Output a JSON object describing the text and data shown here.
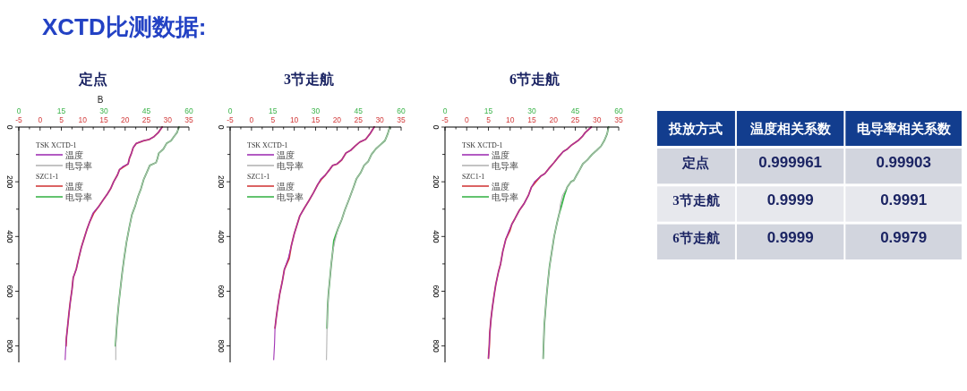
{
  "chart_data": [
    {
      "type": "line",
      "title": "XCTD比测数据:",
      "subtitle": "定点",
      "annotations": [
        "TSK XCTD-1",
        "SZC1-1",
        "B"
      ],
      "legend": "top left",
      "xlim": [
        -5,
        35
      ],
      "xticks": [
        -5,
        {
          "value": -2.5,
          "label": null
        },
        0,
        {
          "value": 2.5,
          "label": null
        },
        5,
        {
          "value": 7.5,
          "label": null
        },
        10,
        {
          "value": 12.5,
          "label": null
        },
        15,
        {
          "value": 17.5,
          "label": null
        },
        20,
        {
          "value": 22.5,
          "label": null
        },
        25,
        {
          "value": 27.5,
          "label": null
        },
        30,
        {
          "value": 32.5,
          "label": null
        },
        35
      ],
      "x2lim": [
        0,
        60
      ],
      "x2ticks": [
        0,
        15,
        30,
        45,
        60
      ],
      "ylim": [
        860,
        0
      ],
      "yticks": [
        0,
        {
          "value": 100,
          "label": null
        },
        200,
        {
          "value": 300,
          "label": null
        },
        400,
        {
          "value": 500,
          "label": null
        },
        600,
        {
          "value": 700,
          "label": null
        },
        800
      ],
      "series": [
        {
          "name": "温度",
          "color": "#a032b4",
          "x": [
            28.7,
            27.8,
            26.8,
            25.7,
            24.3,
            22.6,
            21.9,
            21.5,
            21.0,
            20.7,
            19.4,
            18.7,
            18.2,
            17.3,
            16.6,
            15.8,
            14.9,
            13.8,
            12.4,
            11.7,
            11.0,
            10.3,
            9.7,
            9.0,
            8.5,
            7.8,
            7.5,
            7.1,
            6.8,
            6.5,
            6.2,
            6.0,
            5.9
          ],
          "values": [
            0,
            20,
            35,
            45,
            50,
            60,
            75,
            95,
            115,
            135,
            145,
            155,
            175,
            200,
            225,
            245,
            265,
            290,
            315,
            345,
            375,
            410,
            440,
            485,
            520,
            550,
            595,
            640,
            680,
            725,
            770,
            815,
            850
          ]
        },
        {
          "name": "电导率",
          "color": "#b4b4b4",
          "axis": "x2",
          "x": [
            56.5,
            55.8,
            54.7,
            53.7,
            52.1,
            51.0,
            49.4,
            48.9,
            48.4,
            46.2,
            45.2,
            44.1,
            43.1,
            42.0,
            41.0,
            39.9,
            39.0,
            38.0,
            37.2,
            36.5,
            35.9,
            35.3,
            34.8,
            34.4,
            34.2,
            34.2
          ],
          "values": [
            0,
            20,
            35,
            50,
            60,
            80,
            95,
            115,
            130,
            140,
            165,
            190,
            225,
            255,
            290,
            320,
            365,
            420,
            475,
            530,
            585,
            640,
            695,
            750,
            800,
            850
          ]
        },
        {
          "name": "温度",
          "color": "#d23c3c",
          "x": [
            28.7,
            27.8,
            26.8,
            25.7,
            24.3,
            22.6,
            21.9,
            21.5,
            21.0,
            20.7,
            19.7,
            18.7,
            18.2,
            17.3,
            16.6,
            15.8,
            14.9,
            13.8,
            12.6,
            11.7,
            11.0,
            10.3,
            9.7,
            9.0,
            8.5,
            7.8,
            7.5,
            7.1,
            6.8,
            6.5,
            6.2,
            6.1
          ],
          "values": [
            0,
            20,
            35,
            45,
            50,
            60,
            75,
            95,
            115,
            135,
            145,
            155,
            175,
            200,
            225,
            245,
            265,
            290,
            315,
            345,
            375,
            410,
            440,
            485,
            520,
            550,
            595,
            640,
            680,
            725,
            770,
            800
          ]
        },
        {
          "name": "电导率",
          "color": "#3cb44b",
          "axis": "x2",
          "x": [
            56.5,
            55.8,
            54.7,
            53.7,
            52.1,
            51.0,
            49.4,
            48.9,
            48.4,
            46.2,
            45.2,
            44.1,
            43.1,
            42.0,
            41.0,
            39.9,
            39.0,
            38.0,
            37.2,
            36.5,
            35.9,
            35.3,
            34.8,
            34.4,
            34.1
          ],
          "values": [
            0,
            20,
            35,
            50,
            60,
            80,
            95,
            115,
            130,
            140,
            165,
            190,
            225,
            255,
            290,
            320,
            365,
            420,
            475,
            530,
            585,
            640,
            695,
            750,
            800
          ]
        }
      ]
    },
    {
      "type": "line",
      "subtitle": "3节走航",
      "annotations": [
        "TSK XCTD-1",
        "SZC1-1"
      ],
      "legend": "top left",
      "xlim": [
        -5,
        35
      ],
      "xticks": [
        -5,
        {
          "value": -2.5,
          "label": null
        },
        0,
        {
          "value": 2.5,
          "label": null
        },
        5,
        {
          "value": 7.5,
          "label": null
        },
        10,
        {
          "value": 12.5,
          "label": null
        },
        15,
        {
          "value": 17.5,
          "label": null
        },
        20,
        {
          "value": 22.5,
          "label": null
        },
        25,
        {
          "value": 27.5,
          "label": null
        },
        30,
        {
          "value": 32.5,
          "label": null
        },
        35
      ],
      "x2lim": [
        0,
        60
      ],
      "x2ticks": [
        0,
        15,
        30,
        45,
        60
      ],
      "ylim": [
        860,
        0
      ],
      "yticks": [
        0,
        {
          "value": 100,
          "label": null
        },
        200,
        {
          "value": 300,
          "label": null
        },
        400,
        {
          "value": 500,
          "label": null
        },
        600,
        {
          "value": 700,
          "label": null
        },
        800
      ],
      "series": [
        {
          "name": "温度",
          "color": "#a032b4",
          "x": [
            28.7,
            27.7,
            26.7,
            25.3,
            24.2,
            23.2,
            22.1,
            21.1,
            20.0,
            19.0,
            18.3,
            17.3,
            16.2,
            15.5,
            14.5,
            13.4,
            12.4,
            11.3,
            10.7,
            10.0,
            9.3,
            8.6,
            7.7,
            7.2,
            6.6,
            6.2,
            5.8,
            5.5,
            5.4,
            5.2
          ],
          "values": [
            0,
            25,
            45,
            55,
            70,
            85,
            95,
            120,
            135,
            140,
            155,
            175,
            190,
            210,
            240,
            270,
            295,
            325,
            355,
            390,
            435,
            480,
            520,
            565,
            610,
            650,
            695,
            735,
            790,
            850
          ]
        },
        {
          "name": "电导率",
          "color": "#b4b4b4",
          "axis": "x2",
          "x": [
            56.0,
            55.3,
            54.3,
            52.7,
            51.1,
            49.6,
            48.5,
            47.0,
            45.9,
            44.3,
            43.3,
            41.7,
            40.2,
            39.1,
            37.9,
            36.8,
            36.0,
            35.5,
            35.0,
            34.5,
            34.2,
            34.0,
            33.9,
            33.8
          ],
          "values": [
            0,
            25,
            50,
            65,
            80,
            100,
            125,
            140,
            165,
            190,
            220,
            265,
            305,
            340,
            370,
            415,
            455,
            500,
            555,
            610,
            660,
            735,
            800,
            850
          ]
        },
        {
          "name": "温度",
          "color": "#d23c3c",
          "x": [
            28.7,
            27.7,
            26.7,
            25.3,
            24.2,
            23.2,
            22.1,
            21.1,
            20.0,
            19.0,
            18.3,
            17.3,
            16.4,
            15.5,
            14.5,
            13.4,
            12.4,
            11.3,
            10.7,
            10.0,
            9.3,
            8.8,
            7.7,
            7.2,
            6.6,
            6.2,
            5.8,
            5.5
          ],
          "values": [
            0,
            25,
            45,
            55,
            70,
            85,
            95,
            120,
            135,
            140,
            155,
            175,
            190,
            210,
            240,
            270,
            295,
            325,
            355,
            390,
            435,
            480,
            520,
            565,
            610,
            650,
            695,
            735
          ]
        },
        {
          "name": "电导率",
          "color": "#3cb44b",
          "axis": "x2",
          "x": [
            56.0,
            55.3,
            54.3,
            52.7,
            51.1,
            49.6,
            48.5,
            47.0,
            45.9,
            44.3,
            43.3,
            41.7,
            40.2,
            39.1,
            37.9,
            36.4,
            36.0,
            35.5,
            35.0,
            34.5,
            34.2,
            34.0
          ],
          "values": [
            0,
            25,
            50,
            65,
            80,
            100,
            125,
            140,
            165,
            190,
            220,
            265,
            305,
            340,
            370,
            415,
            455,
            500,
            555,
            610,
            660,
            735
          ]
        }
      ]
    },
    {
      "type": "line",
      "subtitle": "6节走航",
      "annotations": [
        "TSK XCTD-1",
        "SZC1-1"
      ],
      "legend": "top left",
      "xlim": [
        -5,
        35
      ],
      "xticks": [
        -5,
        {
          "value": -2.5,
          "label": null
        },
        0,
        {
          "value": 2.5,
          "label": null
        },
        5,
        {
          "value": 7.5,
          "label": null
        },
        10,
        {
          "value": 12.5,
          "label": null
        },
        15,
        {
          "value": 17.5,
          "label": null
        },
        20,
        {
          "value": 22.5,
          "label": null
        },
        25,
        {
          "value": 27.5,
          "label": null
        },
        30,
        {
          "value": 32.5,
          "label": null
        },
        35
      ],
      "x2lim": [
        0,
        60
      ],
      "x2ticks": [
        0,
        15,
        30,
        45,
        60
      ],
      "ylim": [
        860,
        0
      ],
      "yticks": [
        0,
        {
          "value": 100,
          "label": null
        },
        200,
        {
          "value": 300,
          "label": null
        },
        400,
        {
          "value": 500,
          "label": null
        },
        600,
        {
          "value": 700,
          "label": null
        },
        800
      ],
      "series": [
        {
          "name": "温度",
          "color": "#a032b4",
          "x": [
            28.7,
            27.3,
            26.6,
            25.6,
            24.2,
            23.2,
            22.2,
            21.1,
            20.1,
            19.0,
            18.0,
            17.0,
            15.6,
            14.9,
            14.2,
            13.2,
            12.1,
            11.1,
            10.4,
            9.7,
            9.0,
            8.3,
            7.8,
            7.3,
            6.7,
            6.3,
            5.9,
            5.6,
            5.3,
            5.2,
            5.0
          ],
          "values": [
            0,
            20,
            35,
            50,
            65,
            80,
            90,
            110,
            130,
            150,
            170,
            180,
            200,
            220,
            250,
            280,
            305,
            335,
            355,
            380,
            410,
            455,
            500,
            530,
            575,
            615,
            660,
            700,
            755,
            800,
            845
          ]
        },
        {
          "name": "电导率",
          "color": "#b4b4b4",
          "axis": "x2",
          "x": [
            56.5,
            56.0,
            55.0,
            53.9,
            52.4,
            50.8,
            49.2,
            47.6,
            46.6,
            45.5,
            44.5,
            43.5,
            42.2,
            40.6,
            39.8,
            39.5,
            38.7,
            37.7,
            36.9,
            36.1,
            35.6,
            35.1,
            34.7,
            34.3,
            34.1,
            33.9
          ],
          "values": [
            0,
            25,
            50,
            70,
            85,
            100,
            120,
            135,
            155,
            175,
            195,
            200,
            220,
            250,
            285,
            315,
            350,
            400,
            455,
            510,
            560,
            615,
            670,
            725,
            785,
            845
          ]
        },
        {
          "name": "温度",
          "color": "#d23c3c",
          "x": [
            28.7,
            27.3,
            26.6,
            25.6,
            24.2,
            23.2,
            22.2,
            21.1,
            20.1,
            19.0,
            18.0,
            17.0,
            15.9,
            14.9,
            14.2,
            13.2,
            12.1,
            11.1,
            10.4,
            9.9,
            9.0,
            8.3,
            7.8,
            7.3,
            6.7,
            6.3,
            5.9,
            5.6,
            5.3,
            5.2,
            5.0
          ],
          "values": [
            0,
            20,
            35,
            50,
            65,
            80,
            90,
            110,
            130,
            150,
            170,
            180,
            200,
            220,
            250,
            280,
            305,
            335,
            355,
            380,
            410,
            455,
            500,
            530,
            575,
            615,
            660,
            700,
            755,
            800,
            845
          ]
        },
        {
          "name": "电导率",
          "color": "#3cb44b",
          "axis": "x2",
          "x": [
            56.5,
            56.0,
            55.0,
            53.9,
            52.4,
            50.8,
            49.2,
            47.6,
            46.6,
            45.5,
            44.5,
            43.5,
            42.2,
            41.2,
            40.3,
            39.5,
            38.7,
            37.7,
            36.9,
            36.1,
            35.6,
            35.1,
            34.7,
            34.3,
            34.1,
            33.9
          ],
          "values": [
            0,
            25,
            50,
            70,
            85,
            100,
            120,
            135,
            155,
            175,
            195,
            200,
            220,
            250,
            285,
            315,
            350,
            400,
            455,
            510,
            560,
            615,
            670,
            725,
            785,
            845
          ]
        }
      ]
    },
    {
      "type": "other",
      "xlabel": "投放方式",
      "categories": [
        "定点",
        "3节走航",
        "6节走航"
      ],
      "data_labels": true,
      "series": [
        {
          "name": "温度相关系数",
          "colors": [
            "#d2d5de",
            "#e7e8ed",
            "#d2d5de"
          ],
          "values": [
            0.999961,
            0.9999,
            0.9999
          ]
        },
        {
          "name": "电导率相关系数",
          "colors": [
            "#d2d5de",
            "#e7e8ed",
            "#d2d5de"
          ],
          "values": [
            0.99903,
            0.9991,
            0.9979
          ]
        }
      ]
    }
  ]
}
